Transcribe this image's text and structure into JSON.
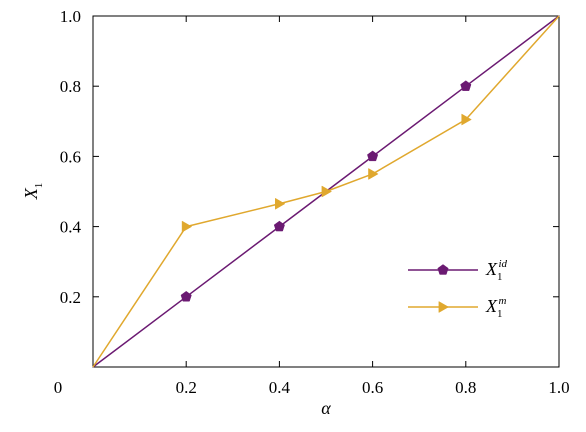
{
  "chart_data": {
    "type": "line",
    "x_label": "α",
    "y_label": {
      "main": "X",
      "sub": "1"
    },
    "xlim": [
      0,
      1.0
    ],
    "ylim": [
      0,
      1.0
    ],
    "x_ticks": [
      {
        "v": 0.2,
        "label": "0.2"
      },
      {
        "v": 0.4,
        "label": "0.4"
      },
      {
        "v": 0.6,
        "label": "0.6"
      },
      {
        "v": 0.8,
        "label": "0.8"
      },
      {
        "v": 1.0,
        "label": "1.0"
      }
    ],
    "y_ticks": [
      {
        "v": 0.2,
        "label": "0.2"
      },
      {
        "v": 0.4,
        "label": "0.4"
      },
      {
        "v": 0.6,
        "label": "0.6"
      },
      {
        "v": 0.8,
        "label": "0.8"
      },
      {
        "v": 1.0,
        "label": "1.0"
      }
    ],
    "origin_label": "0",
    "grid": false,
    "legend_position": "lower-right",
    "series": [
      {
        "key": "id",
        "legend": {
          "main": "X",
          "sub": "1",
          "sup": "id"
        },
        "color": "#6b1a72",
        "marker": "pentagon",
        "x": [
          0,
          0.2,
          0.4,
          0.5,
          0.6,
          0.8,
          1.0
        ],
        "y": [
          0,
          0.2,
          0.4,
          0.5,
          0.6,
          0.8,
          1.0
        ],
        "marker_x": [
          0.2,
          0.4,
          0.6,
          0.8
        ]
      },
      {
        "key": "m",
        "legend": {
          "main": "X",
          "sub": "1",
          "sup": "m"
        },
        "color": "#e0a82e",
        "marker": "triangle-right",
        "x": [
          0,
          0.2,
          0.4,
          0.5,
          0.6,
          0.8,
          1.0
        ],
        "y": [
          0,
          0.4,
          0.465,
          0.5,
          0.55,
          0.705,
          1.0
        ],
        "marker_x": [
          0.2,
          0.4,
          0.5,
          0.6,
          0.8
        ]
      }
    ]
  }
}
